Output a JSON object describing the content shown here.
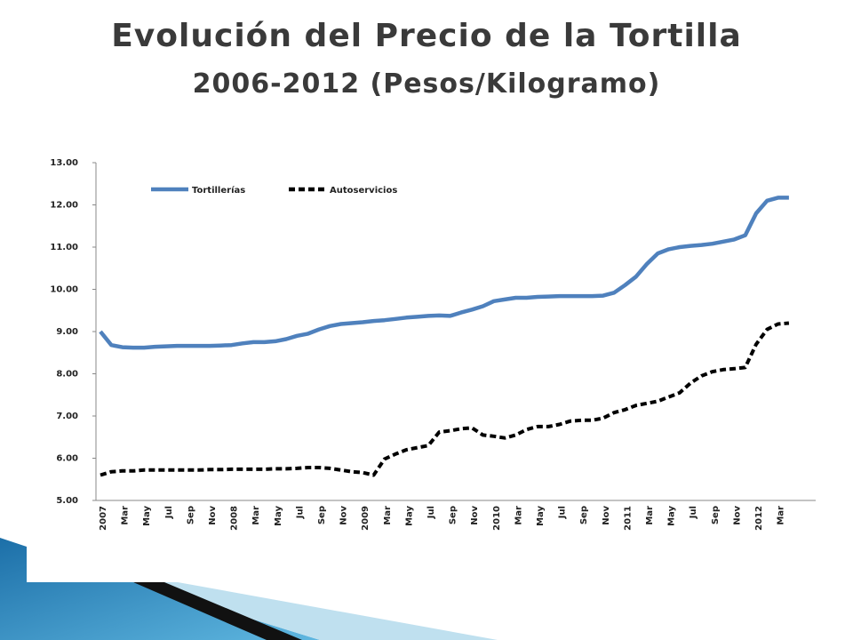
{
  "title": "Evolución del Precio de la Tortilla",
  "subtitle": "2006-2012 (Pesos/Kilogramo)",
  "chart_data": {
    "type": "line",
    "categories": [
      "2007",
      null,
      "Mar",
      null,
      "May",
      null,
      "Jul",
      null,
      "Sep",
      null,
      "Nov",
      null,
      "2008",
      null,
      "Mar",
      null,
      "May",
      null,
      "Jul",
      null,
      "Sep",
      null,
      "Nov",
      null,
      "2009",
      null,
      "Mar",
      null,
      "May",
      null,
      "Jul",
      null,
      "Sep",
      null,
      "Nov",
      null,
      "2010",
      null,
      "Mar",
      null,
      "May",
      null,
      "Jul",
      null,
      "Sep",
      null,
      "Nov",
      null,
      "2011",
      null,
      "Mar",
      null,
      "May",
      null,
      "Jul",
      null,
      "Sep",
      null,
      "Nov",
      null,
      "2012",
      null,
      "Mar",
      null
    ],
    "series": [
      {
        "name": "Tortillerías",
        "color": "#4f81bd",
        "dash": false,
        "values": [
          9.0,
          8.68,
          8.63,
          8.62,
          8.62,
          8.64,
          8.65,
          8.66,
          8.66,
          8.66,
          8.66,
          8.67,
          8.68,
          8.72,
          8.75,
          8.75,
          8.77,
          8.82,
          8.9,
          8.95,
          9.05,
          9.13,
          9.18,
          9.2,
          9.22,
          9.25,
          9.27,
          9.3,
          9.33,
          9.35,
          9.37,
          9.38,
          9.37,
          9.45,
          9.52,
          9.6,
          9.72,
          9.76,
          9.8,
          9.8,
          9.82,
          9.83,
          9.84,
          9.84,
          9.84,
          9.84,
          9.85,
          9.92,
          10.1,
          10.3,
          10.6,
          10.85,
          10.95,
          11.0,
          11.03,
          11.05,
          11.08,
          11.13,
          11.18,
          11.28,
          11.8,
          12.1,
          12.17,
          12.17
        ]
      },
      {
        "name": "Autoservicios",
        "color": "#000000",
        "dash": true,
        "values": [
          5.6,
          5.68,
          5.7,
          5.7,
          5.72,
          5.72,
          5.72,
          5.72,
          5.72,
          5.72,
          5.73,
          5.73,
          5.74,
          5.74,
          5.74,
          5.74,
          5.75,
          5.75,
          5.76,
          5.78,
          5.78,
          5.76,
          5.72,
          5.68,
          5.66,
          5.6,
          5.98,
          6.1,
          6.2,
          6.25,
          6.3,
          6.62,
          6.65,
          6.7,
          6.72,
          6.55,
          6.52,
          6.48,
          6.55,
          6.68,
          6.75,
          6.75,
          6.8,
          6.88,
          6.9,
          6.9,
          6.95,
          7.08,
          7.15,
          7.25,
          7.3,
          7.35,
          7.45,
          7.55,
          7.78,
          7.95,
          8.05,
          8.1,
          8.12,
          8.15,
          8.7,
          9.05,
          9.18,
          9.2
        ]
      }
    ],
    "ylim": [
      5,
      13
    ],
    "yticks": [
      {
        "value": 5,
        "label": "5.00"
      },
      {
        "value": 6,
        "label": "6.00"
      },
      {
        "value": 7,
        "label": "7.00"
      },
      {
        "value": 8,
        "label": "8.00"
      },
      {
        "value": 9,
        "label": "9.00"
      },
      {
        "value": 10,
        "label": "10.00"
      },
      {
        "value": 11,
        "label": "11.00"
      },
      {
        "value": 12,
        "label": "12.00"
      },
      {
        "value": 13,
        "label": "13.00"
      }
    ]
  }
}
